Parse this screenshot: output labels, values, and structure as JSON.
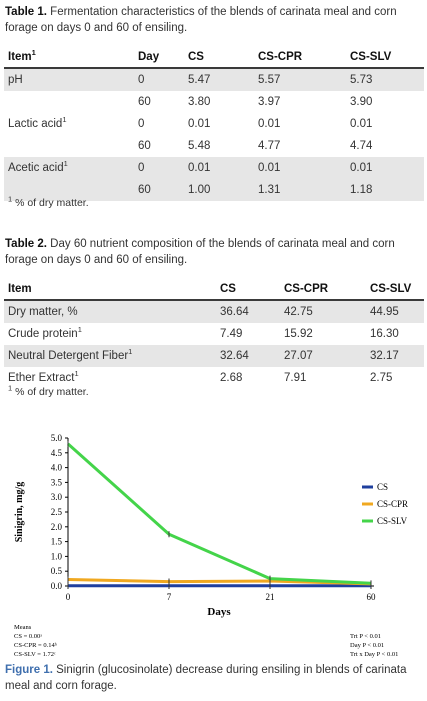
{
  "table1": {
    "label": "Table 1.",
    "caption": "Fermentation characteristics of the blends of carinata meal and corn forage on days 0 and 60 of ensiling.",
    "headers": [
      "Item",
      "Day",
      "CS",
      "CS-CPR",
      "CS-SLV"
    ],
    "header_sup": "1",
    "rows": [
      [
        "pH",
        "0",
        "5.47",
        "5.57",
        "5.73"
      ],
      [
        "",
        "60",
        "3.80",
        "3.97",
        "3.90"
      ],
      [
        "Lactic acid",
        "0",
        "0.01",
        "0.01",
        "0.01"
      ],
      [
        "",
        "60",
        "5.48",
        "4.77",
        "4.74"
      ],
      [
        "Acetic acid",
        "0",
        "0.01",
        "0.01",
        "0.01"
      ],
      [
        "",
        "60",
        "1.00",
        "1.31",
        "1.18"
      ]
    ],
    "row_sups": [
      "",
      "",
      "1",
      "",
      "1",
      ""
    ],
    "footnote_sup": "1",
    "footnote": "% of dry matter."
  },
  "table2": {
    "label": "Table 2.",
    "caption": "Day 60 nutrient composition of the blends of carinata meal and corn forage on days 0 and 60 of ensiling.",
    "headers": [
      "Item",
      "CS",
      "CS-CPR",
      "CS-SLV"
    ],
    "rows": [
      [
        "Dry matter, %",
        "36.64",
        "42.75",
        "44.95"
      ],
      [
        "Crude protein",
        "7.49",
        "15.92",
        "16.30"
      ],
      [
        "Neutral Detergent Fiber",
        "32.64",
        "27.07",
        "32.17"
      ],
      [
        "Ether Extract",
        "2.68",
        "7.91",
        "2.75"
      ]
    ],
    "row_sups": [
      "",
      "1",
      "1",
      "1"
    ],
    "footnote_sup": "1",
    "footnote": "% of dry matter."
  },
  "chart_data": {
    "type": "line",
    "title": "",
    "xlabel": "Days",
    "ylabel": "Sinigrin, mg/g",
    "x": [
      "0",
      "7",
      "21",
      "60"
    ],
    "ylim": [
      0,
      5.0
    ],
    "yticks": [
      "0.0",
      "0.5",
      "1.0",
      "1.5",
      "2.0",
      "2.5",
      "3.0",
      "3.5",
      "4.0",
      "4.5",
      "5.0"
    ],
    "series": [
      {
        "name": "CS",
        "color": "#1f3f9e",
        "values": [
          0.01,
          0.01,
          0.01,
          0.01
        ]
      },
      {
        "name": "CS-CPR",
        "color": "#f0a820",
        "values": [
          0.22,
          0.15,
          0.17,
          0.07
        ]
      },
      {
        "name": "CS-SLV",
        "color": "#44d44a",
        "values": [
          4.8,
          1.75,
          0.25,
          0.09
        ]
      }
    ],
    "legend_position": "right",
    "grid": false,
    "notes_left": [
      "Means",
      "CS = 0.00ᵃ",
      "CS-CPR = 0.14ᵇ",
      "CS-SLV = 1.72ᶜ"
    ],
    "notes_right": [
      "Trt P < 0.01",
      "Day P < 0.01",
      "Trt x Day P < 0.01"
    ]
  },
  "figure": {
    "label": "Figure 1.",
    "caption": "Sinigrin (glucosinolate) decrease during ensiling in blends of carinata meal and corn forage."
  }
}
